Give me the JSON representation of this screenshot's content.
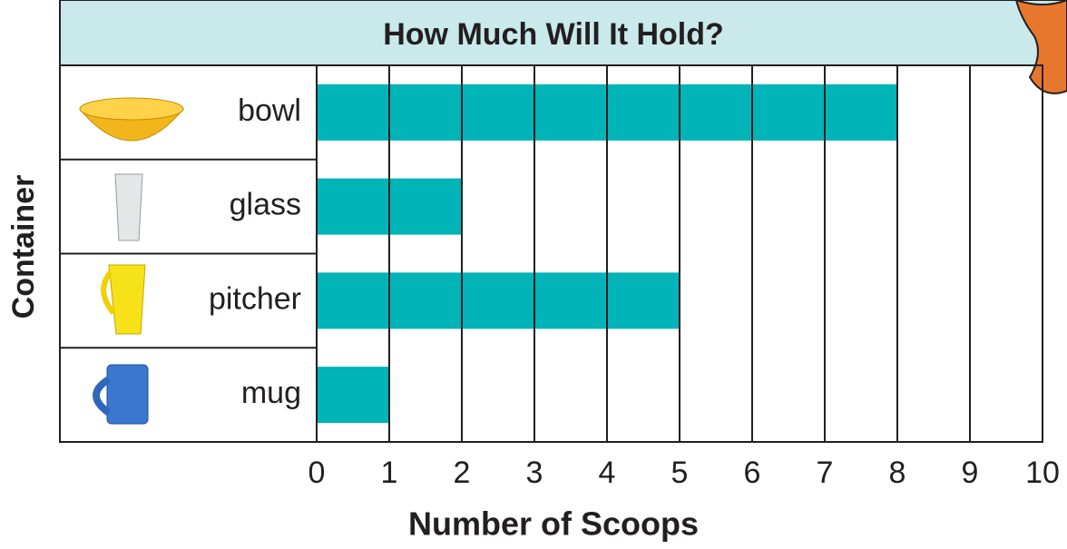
{
  "chart_data": {
    "type": "bar",
    "orientation": "horizontal",
    "title": "How Much Will It Hold?",
    "categories": [
      "bowl",
      "glass",
      "pitcher",
      "mug"
    ],
    "values": [
      8,
      2,
      5,
      1
    ],
    "color": "#00b4b8",
    "xlim": [
      0,
      10
    ],
    "xticks": [
      0,
      1,
      2,
      3,
      4,
      5,
      6,
      7,
      8,
      9,
      10
    ],
    "grid": true,
    "x_label": "Number of Scoops",
    "y_label": "Container"
  }
}
